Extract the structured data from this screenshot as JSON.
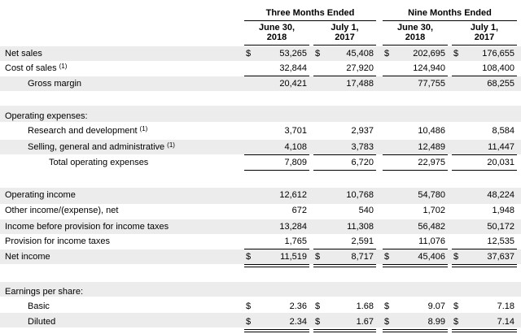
{
  "headers": {
    "three_months": "Three Months Ended",
    "nine_months": "Nine Months Ended",
    "col1": [
      "June 30,",
      "2018"
    ],
    "col2": [
      "July 1,",
      "2017"
    ],
    "col3": [
      "June 30,",
      "2018"
    ],
    "col4": [
      "July 1,",
      "2017"
    ]
  },
  "currency": "$",
  "footnote_mark": "(1)",
  "rows": [
    {
      "key": "net_sales",
      "label": "Net sales",
      "values": [
        "53,265",
        "45,408",
        "202,695",
        "176,655"
      ]
    },
    {
      "key": "cost_of_sales",
      "label": "Cost of sales",
      "values": [
        "32,844",
        "27,920",
        "124,940",
        "108,400"
      ]
    },
    {
      "key": "gross_margin",
      "label": "Gross margin",
      "values": [
        "20,421",
        "17,488",
        "77,755",
        "68,255"
      ]
    },
    {
      "key": "operating_expenses",
      "label": "Operating expenses:"
    },
    {
      "key": "rnd",
      "label": "Research and development",
      "values": [
        "3,701",
        "2,937",
        "10,486",
        "8,584"
      ]
    },
    {
      "key": "sga",
      "label": "Selling, general and administrative",
      "values": [
        "4,108",
        "3,783",
        "12,489",
        "11,447"
      ]
    },
    {
      "key": "total_opex",
      "label": "Total operating expenses",
      "values": [
        "7,809",
        "6,720",
        "22,975",
        "20,031"
      ]
    },
    {
      "key": "operating_income",
      "label": "Operating income",
      "values": [
        "12,612",
        "10,768",
        "54,780",
        "48,224"
      ]
    },
    {
      "key": "other_income",
      "label": "Other income/(expense), net",
      "values": [
        "672",
        "540",
        "1,702",
        "1,948"
      ]
    },
    {
      "key": "income_before_tax",
      "label": "Income before provision for income taxes",
      "values": [
        "13,284",
        "11,308",
        "56,482",
        "50,172"
      ]
    },
    {
      "key": "provision",
      "label": "Provision for income taxes",
      "values": [
        "1,765",
        "2,591",
        "11,076",
        "12,535"
      ]
    },
    {
      "key": "net_income",
      "label": "Net income",
      "values": [
        "11,519",
        "8,717",
        "45,406",
        "37,637"
      ]
    },
    {
      "key": "eps",
      "label": "Earnings per share:"
    },
    {
      "key": "basic",
      "label": "Basic",
      "values": [
        "2.36",
        "1.68",
        "9.07",
        "7.18"
      ]
    },
    {
      "key": "diluted",
      "label": "Diluted",
      "values": [
        "2.34",
        "1.67",
        "8.99",
        "7.14"
      ]
    }
  ]
}
